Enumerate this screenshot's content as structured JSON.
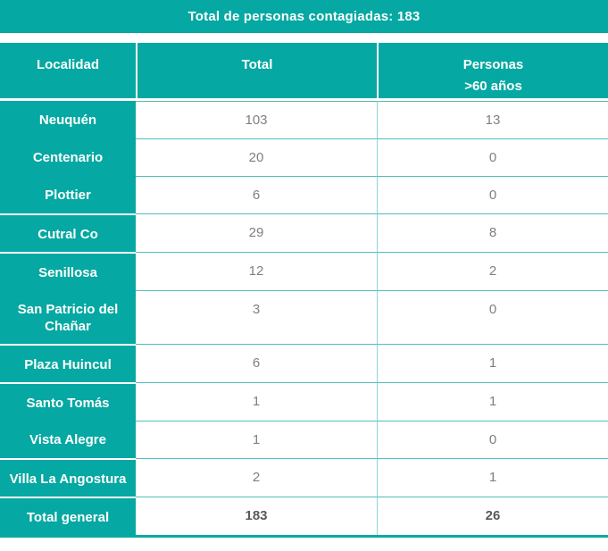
{
  "title": {
    "text": "Total de personas contagiadas: 183"
  },
  "colors": {
    "teal": "#05a8a2",
    "grid_line_horizontal": "#4fbfba",
    "grid_line_vertical": "#8fd5d2",
    "number_gray": "#7f7f7f",
    "total_row_gray": "#595959",
    "header_text": "#ffffff"
  },
  "table": {
    "headers": {
      "localidad": "Localidad",
      "total": "Total",
      "personas_line1": "Personas",
      "personas_line2": ">60 años"
    },
    "rows": [
      {
        "localidad": "Neuquén",
        "total": "103",
        "mayores": "13",
        "divider": false,
        "bold": false
      },
      {
        "localidad": "Centenario",
        "total": "20",
        "mayores": "0",
        "divider": false,
        "bold": false
      },
      {
        "localidad": "Plottier",
        "total": "6",
        "mayores": "0",
        "divider": false,
        "bold": false
      },
      {
        "localidad": "Cutral Co",
        "total": "29",
        "mayores": "8",
        "divider": true,
        "bold": false
      },
      {
        "localidad": "Senillosa",
        "total": "12",
        "mayores": "2",
        "divider": true,
        "bold": false
      },
      {
        "localidad": "San Patricio del Chañar",
        "total": "3",
        "mayores": "0",
        "divider": false,
        "bold": false
      },
      {
        "localidad": "Plaza Huincul",
        "total": "6",
        "mayores": "1",
        "divider": true,
        "bold": false
      },
      {
        "localidad": "Santo Tomás",
        "total": "1",
        "mayores": "1",
        "divider": true,
        "bold": false
      },
      {
        "localidad": "Vista Alegre",
        "total": "1",
        "mayores": "0",
        "divider": false,
        "bold": false
      },
      {
        "localidad": "Villa La Angostura",
        "total": "2",
        "mayores": "1",
        "divider": true,
        "bold": false
      },
      {
        "localidad": "Total general",
        "total": "183",
        "mayores": "26",
        "divider": true,
        "bold": true
      }
    ]
  }
}
